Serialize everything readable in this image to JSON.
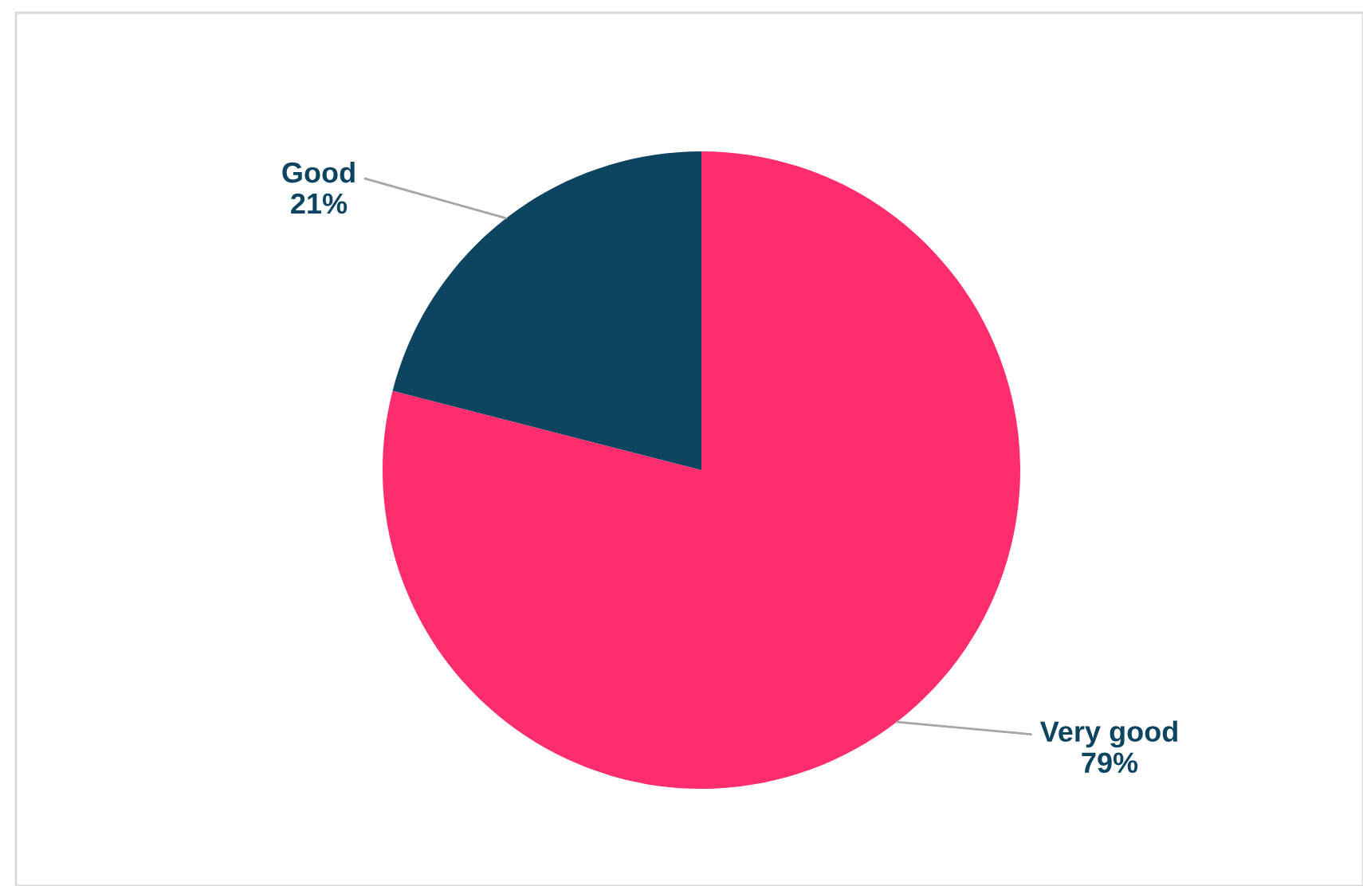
{
  "chart_data": {
    "type": "pie",
    "categories": [
      "Very good",
      "Good"
    ],
    "values": [
      79,
      21
    ],
    "colors": [
      "#ff2d6e",
      "#0d4460"
    ],
    "value_labels": [
      "79%",
      "21%"
    ]
  }
}
